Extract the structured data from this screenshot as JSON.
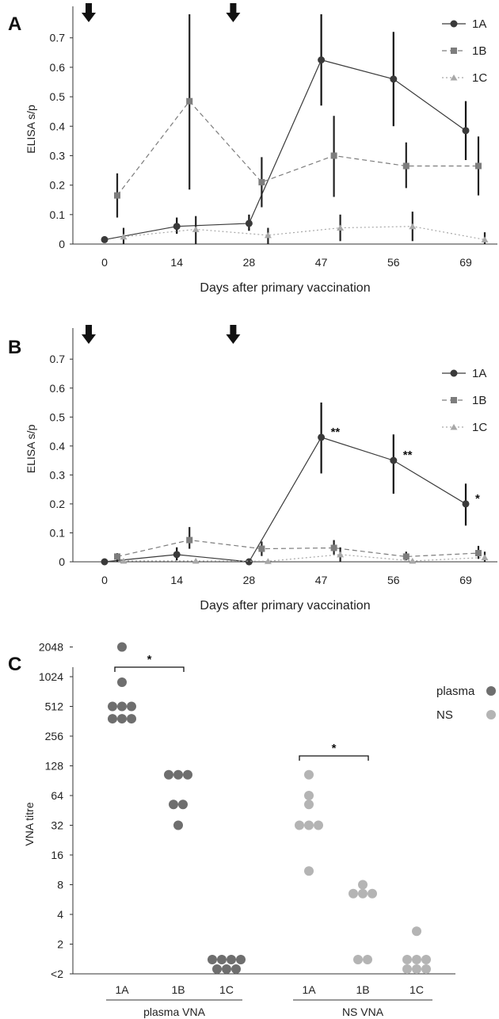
{
  "chart_data": [
    {
      "panel": "A",
      "type": "line",
      "ylabel": "ELISA  s/p",
      "xlabel": "Days after primary vaccination",
      "categories": [
        "0",
        "14",
        "28",
        "47",
        "56",
        "69"
      ],
      "yticks": [
        "0",
        "0.1",
        "0.2",
        "0.3",
        "0.4",
        "0.5",
        "0.6",
        "0.7"
      ],
      "ylim": [
        0,
        0.78
      ],
      "vaccination_markers_at": [
        "0",
        "28"
      ],
      "series": [
        {
          "name": "1A",
          "values": [
            0.015,
            0.06,
            0.07,
            0.625,
            0.56,
            0.385
          ],
          "err_low": [
            0.0,
            0.035,
            0.045,
            0.47,
            0.4,
            0.285
          ],
          "err_high": [
            0.0,
            0.09,
            0.1,
            0.78,
            0.72,
            0.485
          ],
          "color": "#3a3a3a",
          "marker": "circle",
          "dash": "none"
        },
        {
          "name": "1B",
          "values": [
            0.165,
            0.485,
            0.21,
            0.3,
            0.265,
            0.265
          ],
          "err_low": [
            0.09,
            0.185,
            0.125,
            0.16,
            0.19,
            0.165
          ],
          "err_high": [
            0.24,
            0.78,
            0.295,
            0.435,
            0.345,
            0.365
          ],
          "color": "#7d7d7d",
          "marker": "square",
          "dash": "6,4"
        },
        {
          "name": "1C",
          "values": [
            0.025,
            0.05,
            0.03,
            0.055,
            0.06,
            0.015
          ],
          "err_low": [
            0.0,
            0.0,
            0.0,
            0.01,
            0.01,
            0.0
          ],
          "err_high": [
            0.055,
            0.095,
            0.055,
            0.1,
            0.11,
            0.04
          ],
          "color": "#a8a8a8",
          "marker": "triangle",
          "dash": "2,3"
        }
      ],
      "legend": [
        "1A",
        "1B",
        "1C"
      ],
      "legend_position": "top-right"
    },
    {
      "panel": "B",
      "type": "line",
      "ylabel": "ELISA s/p",
      "xlabel": "Days after primary vaccination",
      "categories": [
        "0",
        "14",
        "28",
        "47",
        "56",
        "69"
      ],
      "yticks": [
        "0",
        "0.1",
        "0.2",
        "0.3",
        "0.4",
        "0.5",
        "0.6",
        "0.7"
      ],
      "ylim": [
        0,
        0.78
      ],
      "vaccination_markers_at": [
        "0",
        "28"
      ],
      "series": [
        {
          "name": "1A",
          "values": [
            0.0,
            0.025,
            0.0,
            0.43,
            0.35,
            0.2
          ],
          "err_low": [
            0.0,
            0.005,
            0.0,
            0.305,
            0.235,
            0.125
          ],
          "err_high": [
            0.0,
            0.05,
            0.0,
            0.55,
            0.44,
            0.27
          ],
          "sig": [
            "",
            "",
            "",
            "**",
            "**",
            "*"
          ],
          "color": "#3a3a3a",
          "marker": "circle",
          "dash": "none"
        },
        {
          "name": "1B",
          "values": [
            0.018,
            0.075,
            0.045,
            0.048,
            0.018,
            0.03
          ],
          "err_low": [
            0.0,
            0.045,
            0.02,
            0.025,
            0.005,
            0.01
          ],
          "err_high": [
            0.03,
            0.12,
            0.07,
            0.075,
            0.035,
            0.055
          ],
          "color": "#7d7d7d",
          "marker": "square",
          "dash": "6,4"
        },
        {
          "name": "1C",
          "values": [
            0.003,
            0.003,
            0.002,
            0.025,
            0.003,
            0.015
          ],
          "err_low": [
            0.0,
            0.0,
            0.0,
            0.0,
            0.0,
            0.0
          ],
          "err_high": [
            0.0,
            0.0,
            0.0,
            0.05,
            0.0,
            0.035
          ],
          "color": "#a8a8a8",
          "marker": "triangle",
          "dash": "2,3"
        }
      ],
      "legend": [
        "1A",
        "1B",
        "1C"
      ],
      "legend_position": "right"
    },
    {
      "panel": "C",
      "type": "scatter",
      "ylabel": "VNA titre",
      "yscale": "log2",
      "yticks": [
        "<2",
        "2",
        "4",
        "8",
        "16",
        "32",
        "64",
        "128",
        "256",
        "512",
        "1024",
        "2048"
      ],
      "groups": [
        {
          "label": "plasma VNA",
          "subgroups": [
            "1A",
            "1B",
            "1C"
          ]
        },
        {
          "label": "NS VNA",
          "subgroups": [
            "1A",
            "1B",
            "1C"
          ]
        }
      ],
      "series": [
        {
          "name": "plasma",
          "color": "#6e6e6e",
          "points": [
            {
              "group": "plasma VNA",
              "subgroup": "1A",
              "values": [
                2048,
                900,
                512,
                512,
                512,
                384,
                384,
                384
              ]
            },
            {
              "group": "plasma VNA",
              "subgroup": "1B",
              "values": [
                104,
                104,
                104,
                52,
                52,
                32
              ]
            },
            {
              "group": "plasma VNA",
              "subgroup": "1C",
              "values": [
                "<2",
                "<2",
                "<2",
                "<2",
                "<2",
                "<2",
                "<2"
              ]
            }
          ]
        },
        {
          "name": "NS",
          "color": "#b4b4b4",
          "points": [
            {
              "group": "NS VNA",
              "subgroup": "1A",
              "values": [
                104,
                64,
                52,
                32,
                32,
                32,
                11
              ]
            },
            {
              "group": "NS VNA",
              "subgroup": "1B",
              "values": [
                8,
                6.5,
                6.5,
                6.5,
                "<2",
                "<2"
              ]
            },
            {
              "group": "NS VNA",
              "subgroup": "1C",
              "values": [
                2.7,
                "<2",
                "<2",
                "<2",
                "<2",
                "<2",
                "<2"
              ]
            }
          ]
        }
      ],
      "significance": [
        {
          "between": [
            "plasma VNA 1A",
            "plasma VNA 1B"
          ],
          "label": "*"
        },
        {
          "between": [
            "NS VNA 1A",
            "NS VNA 1B"
          ],
          "label": "*"
        }
      ],
      "legend": [
        "plasma",
        "NS"
      ],
      "legend_position": "top-right"
    }
  ]
}
